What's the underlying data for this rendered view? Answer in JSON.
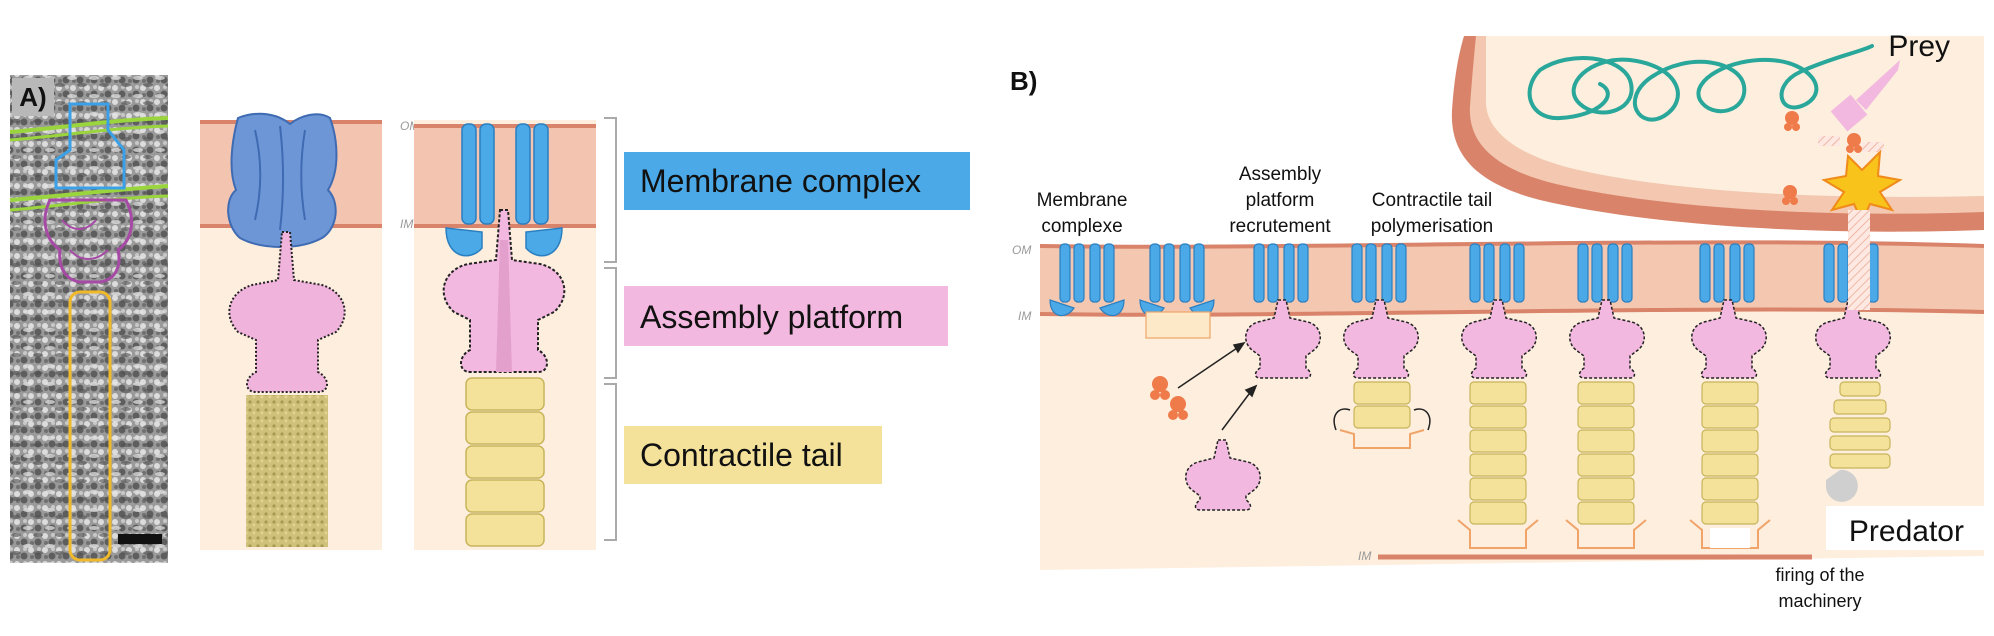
{
  "panel_a": {
    "label": "A)",
    "membrane_labels": {
      "om": "OM",
      "im": "IM"
    },
    "legend": [
      {
        "text": "Membrane complex",
        "color": "#4aa9e6"
      },
      {
        "text": "Assembly platform",
        "color": "#f2b8df"
      },
      {
        "text": "Contractile tail",
        "color": "#f4e29a"
      }
    ]
  },
  "panel_b": {
    "label": "B)",
    "prey": "Prey",
    "predator": "Predator",
    "om": "OM",
    "im": "IM",
    "im_bottom": "IM",
    "steps": [
      {
        "line1": "Membrane",
        "line2": "complexe"
      },
      {
        "line1": "Assembly",
        "line2": "platform",
        "line3": "recrutement"
      },
      {
        "line1": "Contractile tail",
        "line2": "polymerisation"
      }
    ],
    "firing": {
      "line1": "firing of the",
      "line2": "machinery"
    }
  },
  "colors": {
    "membrane_complex": "#4aa9e6",
    "assembly_platform": "#f2b8df",
    "contractile_tail": "#f4e29a",
    "outer_membrane": "#f3c7b0",
    "cytoplasm": "#fdeedd",
    "toxin": "#ef7a4a",
    "dna": "#2aa79b"
  }
}
